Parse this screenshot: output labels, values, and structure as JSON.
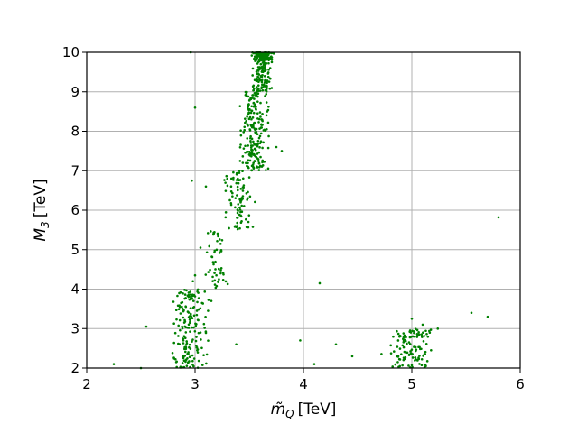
{
  "chart_data": {
    "type": "scatter",
    "xlabel_main": "m̃",
    "xlabel_sub": "Q",
    "xlabel_unit": "[TeV]",
    "ylabel_main": "M",
    "ylabel_sub": "3",
    "ylabel_unit": "[TeV]",
    "xlim": [
      2,
      6
    ],
    "ylim": [
      2,
      10
    ],
    "xticks": [
      "2",
      "3",
      "4",
      "5",
      "6"
    ],
    "yticks": [
      "2",
      "3",
      "4",
      "5",
      "6",
      "7",
      "8",
      "9",
      "10"
    ],
    "grid": true,
    "point_color": "#008000",
    "clusters": [
      {
        "x_mean": 3.62,
        "x_sd": 0.1,
        "y_min": 9.0,
        "y_max": 10.0,
        "count": 280
      },
      {
        "x_mean": 3.55,
        "x_sd": 0.13,
        "y_min": 7.0,
        "y_max": 9.0,
        "count": 210
      },
      {
        "x_mean": 3.4,
        "x_sd": 0.14,
        "y_min": 5.5,
        "y_max": 7.0,
        "count": 90
      },
      {
        "x_mean": 3.2,
        "x_sd": 0.12,
        "y_min": 4.0,
        "y_max": 5.5,
        "count": 50
      },
      {
        "x_mean": 2.95,
        "x_sd": 0.16,
        "y_min": 2.0,
        "y_max": 4.0,
        "count": 180
      },
      {
        "x_mean": 5.0,
        "x_sd": 0.28,
        "y_min": 2.0,
        "y_max": 3.0,
        "count": 120
      }
    ],
    "points": [
      {
        "x": 2.25,
        "y": 2.1
      },
      {
        "x": 2.5,
        "y": 2.0
      },
      {
        "x": 2.55,
        "y": 3.05
      },
      {
        "x": 2.97,
        "y": 6.75
      },
      {
        "x": 2.96,
        "y": 10.0
      },
      {
        "x": 3.0,
        "y": 8.6
      },
      {
        "x": 3.38,
        "y": 2.6
      },
      {
        "x": 3.97,
        "y": 2.7
      },
      {
        "x": 4.15,
        "y": 4.15
      },
      {
        "x": 4.1,
        "y": 2.1
      },
      {
        "x": 4.3,
        "y": 2.6
      },
      {
        "x": 4.45,
        "y": 2.3
      },
      {
        "x": 5.55,
        "y": 3.4
      },
      {
        "x": 5.7,
        "y": 3.3
      },
      {
        "x": 5.8,
        "y": 5.82
      },
      {
        "x": 5.1,
        "y": 3.1
      },
      {
        "x": 5.0,
        "y": 3.25
      },
      {
        "x": 3.15,
        "y": 3.7
      },
      {
        "x": 3.12,
        "y": 3.45
      },
      {
        "x": 3.05,
        "y": 2.9
      },
      {
        "x": 3.0,
        "y": 4.35
      },
      {
        "x": 2.98,
        "y": 4.2
      },
      {
        "x": 3.05,
        "y": 5.05
      },
      {
        "x": 3.1,
        "y": 6.6
      },
      {
        "x": 3.75,
        "y": 7.6
      },
      {
        "x": 3.8,
        "y": 7.5
      }
    ]
  }
}
